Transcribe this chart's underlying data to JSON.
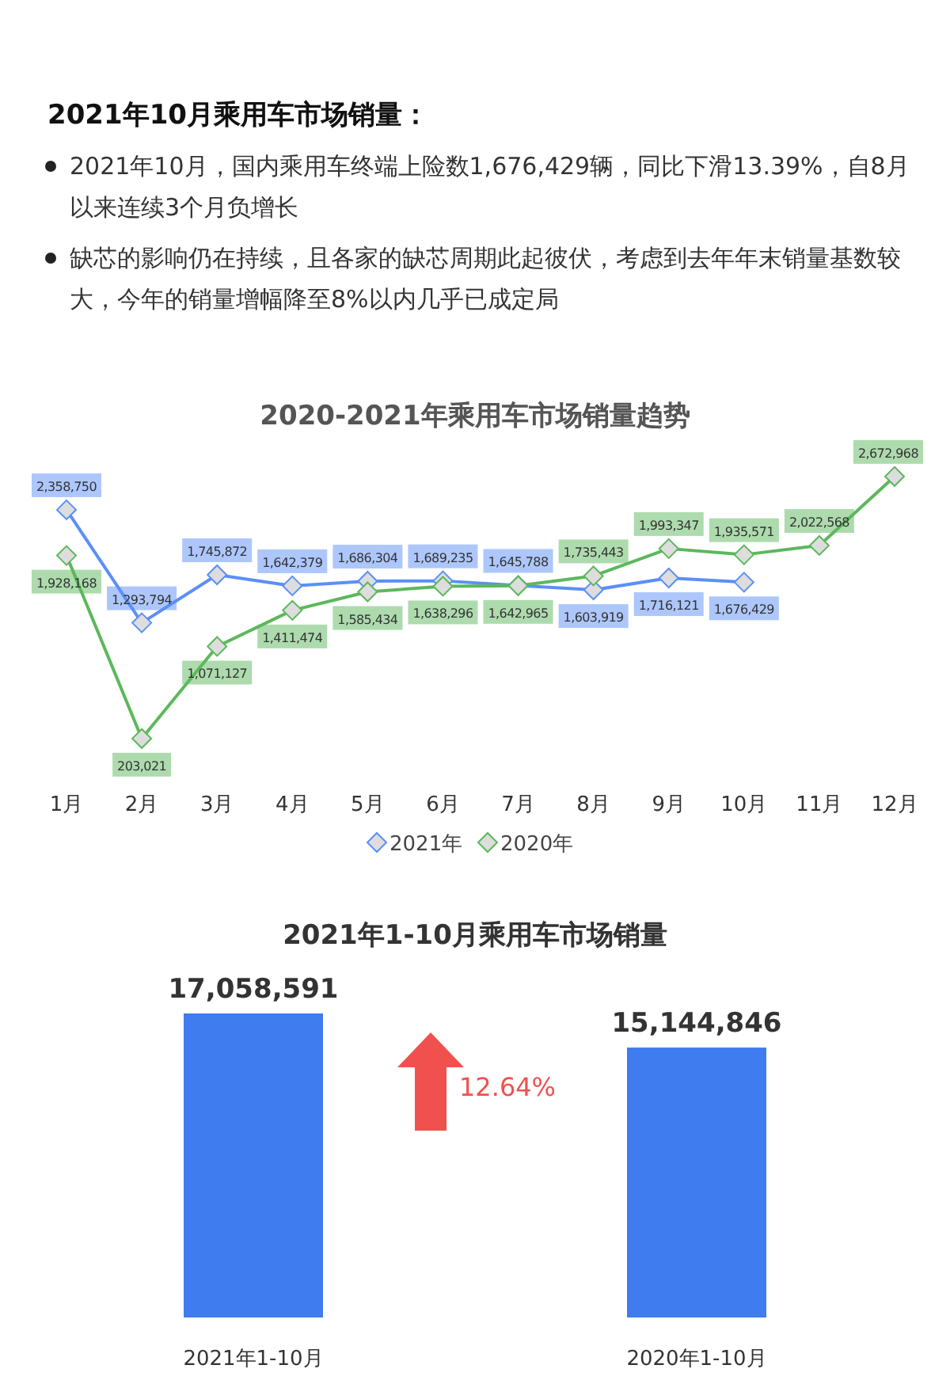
{
  "chart_data": [
    {
      "type": "other",
      "title": "2021年10月乘用车市场销量：",
      "annotations": [
        "2021年10月，国内乘用车终端上险数1,676,429辆，同比下滑13.39%，自8月以来连续3个月负增长",
        "缺芯的影响仍在持续，且各家的缺芯周期此起彼伏，考虑到去年年末销量基数较大，今年的销量增幅降至8%以内几乎已成定局"
      ]
    },
    {
      "type": "line",
      "title": "2020-2021年乘用车市场销量趋势",
      "categories": [
        "1月",
        "2月",
        "3月",
        "4月",
        "5月",
        "6月",
        "7月",
        "8月",
        "9月",
        "10月",
        "11月",
        "12月"
      ],
      "marker": "diamond",
      "legend": "bottom",
      "series": [
        {
          "name": "2021年",
          "color": "#5b8ff9",
          "values": [
            2358750,
            1293794,
            1745872,
            1642379,
            1686304,
            1689235,
            1645788,
            1603919,
            1716121,
            1676429,
            null,
            null
          ],
          "value_labels": [
            "2,358,750",
            "1,293,794",
            "1,745,872",
            "1,642,379",
            "1,686,304",
            "1,689,235",
            "1,645,788",
            "1,603,919",
            "1,716,121",
            "1,676,429",
            null,
            null
          ]
        },
        {
          "name": "2020年",
          "color": "#5cb85c",
          "values": [
            1928168,
            203021,
            1071127,
            1411474,
            1585434,
            1638296,
            1642965,
            1735443,
            1993347,
            1935571,
            2022568,
            2672968
          ],
          "value_labels": [
            "1,928,168",
            "203,021",
            "1,071,127",
            "1,411,474",
            "1,585,434",
            "1,638,296",
            "1,642,965",
            "1,735,443",
            "1,993,347",
            "1,935,571",
            "2,022,568",
            "2,672,968"
          ]
        }
      ]
    },
    {
      "type": "bar",
      "title": "2021年1-10月乘用车市场销量",
      "categories": [
        "2021年1-10月",
        "2020年1-10月"
      ],
      "values": [
        17058591,
        15144846
      ],
      "value_labels": [
        "17,058,591",
        "15,144,846"
      ],
      "color": "#3e7cf0",
      "annotations": [
        "12.64%"
      ]
    }
  ]
}
